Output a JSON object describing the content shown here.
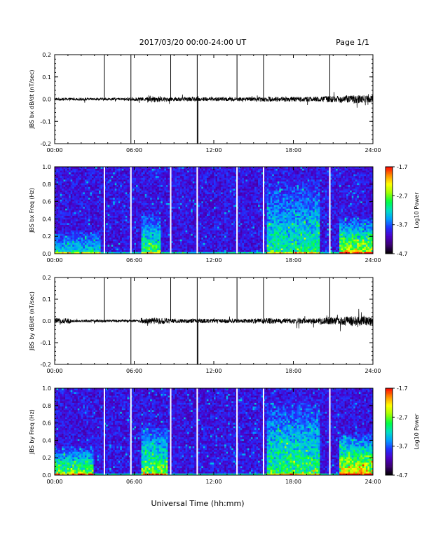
{
  "header": {
    "title": "2017/03/20  00:00-24:00 UT",
    "page": "Page 1/1"
  },
  "footer": {
    "xlabel": "Universal Time (hh:mm)"
  },
  "chart_data": [
    {
      "type": "line",
      "panel": "jbs-bx-timeseries",
      "ylabel": "JBS bx dB/dt (nT/sec)",
      "xlim": [
        0,
        24
      ],
      "ylim": [
        -0.2,
        0.2
      ],
      "x_ticks": [
        "00:00",
        "06:00",
        "12:00",
        "18:00",
        "24:00"
      ],
      "y_ticks": [
        "0.2",
        "0.1",
        "0.0",
        "-0.1",
        "-0.2"
      ],
      "baseline": 0.0,
      "noise_envelope": [
        {
          "from": 0,
          "to": 5.5,
          "amp": 0.006
        },
        {
          "from": 5.5,
          "to": 7,
          "amp": 0.008
        },
        {
          "from": 7,
          "to": 8,
          "amp": 0.014
        },
        {
          "from": 8,
          "to": 15,
          "amp": 0.009
        },
        {
          "from": 15,
          "to": 20,
          "amp": 0.011
        },
        {
          "from": 20,
          "to": 21.5,
          "amp": 0.014
        },
        {
          "from": 21.5,
          "to": 24,
          "amp": 0.018
        }
      ],
      "spikes": [
        {
          "t": 3.75,
          "top": 0.2,
          "bottom": 0.0
        },
        {
          "t": 5.75,
          "top": 0.2,
          "bottom": -0.2
        },
        {
          "t": 8.75,
          "top": 0.2,
          "bottom": 0.0
        },
        {
          "t": 10.75,
          "top": 0.2,
          "bottom": -0.2
        },
        {
          "t": 10.8,
          "top": 0.0,
          "bottom": -0.2
        },
        {
          "t": 13.75,
          "top": 0.2,
          "bottom": 0.0
        },
        {
          "t": 15.75,
          "top": 0.2,
          "bottom": 0.0
        },
        {
          "t": 20.75,
          "top": 0.2,
          "bottom": 0.0
        }
      ]
    },
    {
      "type": "heatmap",
      "panel": "jbs-bx-spectrogram",
      "ylabel": "JBS bx Freq (Hz)",
      "xlim": [
        0,
        24
      ],
      "ylim": [
        0,
        1.0
      ],
      "x_ticks": [
        "00:00",
        "06:00",
        "12:00",
        "18:00",
        "24:00"
      ],
      "y_ticks": [
        "1.0",
        "0.8",
        "0.6",
        "0.4",
        "0.2",
        "0.0"
      ],
      "colorbar": {
        "label": "Log10 Power",
        "ticks": [
          "-1.7",
          "-2.7",
          "-3.7",
          "-4.7"
        ],
        "range": [
          -4.7,
          -1.7
        ],
        "colors": [
          "#000000",
          "#3a0070",
          "#4a00c8",
          "#2030ff",
          "#00a0ff",
          "#00e0c0",
          "#00ff40",
          "#a0ff00",
          "#ffff00",
          "#ff9000",
          "#ff0000"
        ]
      },
      "data_gaps_hours": [
        3.75,
        5.75,
        8.75,
        10.75,
        13.75,
        15.75,
        20.75
      ],
      "activity": [
        {
          "from": 0,
          "to": 3.5,
          "fmax": 0.28,
          "level": 0.3
        },
        {
          "from": 6.5,
          "to": 8.0,
          "fmax": 0.5,
          "level": 0.4
        },
        {
          "from": 16,
          "to": 20,
          "fmax": 0.9,
          "level": 0.35
        },
        {
          "from": 21.5,
          "to": 24,
          "fmax": 0.45,
          "level": 0.55
        }
      ]
    },
    {
      "type": "line",
      "panel": "jbs-by-timeseries",
      "ylabel": "JBS by dB/dt (nT/sec)",
      "xlim": [
        0,
        24
      ],
      "ylim": [
        -0.2,
        0.2
      ],
      "x_ticks": [
        "00:00",
        "06:00",
        "12:00",
        "18:00",
        "24:00"
      ],
      "y_ticks": [
        "0.2",
        "0.1",
        "0.0",
        "-0.1",
        "-0.2"
      ],
      "baseline": 0.0,
      "noise_envelope": [
        {
          "from": 0,
          "to": 1.2,
          "amp": 0.012
        },
        {
          "from": 1.2,
          "to": 6.5,
          "amp": 0.006
        },
        {
          "from": 6.5,
          "to": 8.5,
          "amp": 0.014
        },
        {
          "from": 8.5,
          "to": 15,
          "amp": 0.01
        },
        {
          "from": 15,
          "to": 20,
          "amp": 0.012
        },
        {
          "from": 20,
          "to": 21.5,
          "amp": 0.016
        },
        {
          "from": 21.5,
          "to": 24,
          "amp": 0.022
        }
      ],
      "spikes": [
        {
          "t": 3.75,
          "top": 0.2,
          "bottom": 0.0
        },
        {
          "t": 5.75,
          "top": 0.2,
          "bottom": -0.2
        },
        {
          "t": 8.75,
          "top": 0.2,
          "bottom": 0.0
        },
        {
          "t": 10.75,
          "top": 0.2,
          "bottom": -0.2
        },
        {
          "t": 10.8,
          "top": 0.0,
          "bottom": -0.2
        },
        {
          "t": 13.75,
          "top": 0.2,
          "bottom": 0.0
        },
        {
          "t": 15.75,
          "top": 0.2,
          "bottom": 0.0
        },
        {
          "t": 20.75,
          "top": 0.2,
          "bottom": 0.0
        }
      ]
    },
    {
      "type": "heatmap",
      "panel": "jbs-by-spectrogram",
      "ylabel": "JBS by Freq (Hz)",
      "xlim": [
        0,
        24
      ],
      "ylim": [
        0,
        1.0
      ],
      "x_ticks": [
        "00:00",
        "06:00",
        "12:00",
        "18:00",
        "24:00"
      ],
      "y_ticks": [
        "1.0",
        "0.8",
        "0.6",
        "0.4",
        "0.2",
        "0.0"
      ],
      "colorbar": {
        "label": "Log10 Power",
        "ticks": [
          "-1.7",
          "-2.7",
          "-3.7",
          "-4.7"
        ],
        "range": [
          -4.7,
          -1.7
        ],
        "colors": [
          "#000000",
          "#3a0070",
          "#4a00c8",
          "#2030ff",
          "#00a0ff",
          "#00e0c0",
          "#00ff40",
          "#a0ff00",
          "#ffff00",
          "#ff9000",
          "#ff0000"
        ]
      },
      "data_gaps_hours": [
        3.75,
        5.75,
        8.75,
        10.75,
        13.75,
        15.75,
        20.75
      ],
      "activity": [
        {
          "from": 0,
          "to": 3.0,
          "fmax": 0.35,
          "level": 0.5
        },
        {
          "from": 6.5,
          "to": 8.5,
          "fmax": 0.6,
          "level": 0.5
        },
        {
          "from": 16,
          "to": 20,
          "fmax": 0.9,
          "level": 0.4
        },
        {
          "from": 21.5,
          "to": 24,
          "fmax": 0.5,
          "level": 0.65
        }
      ]
    }
  ]
}
